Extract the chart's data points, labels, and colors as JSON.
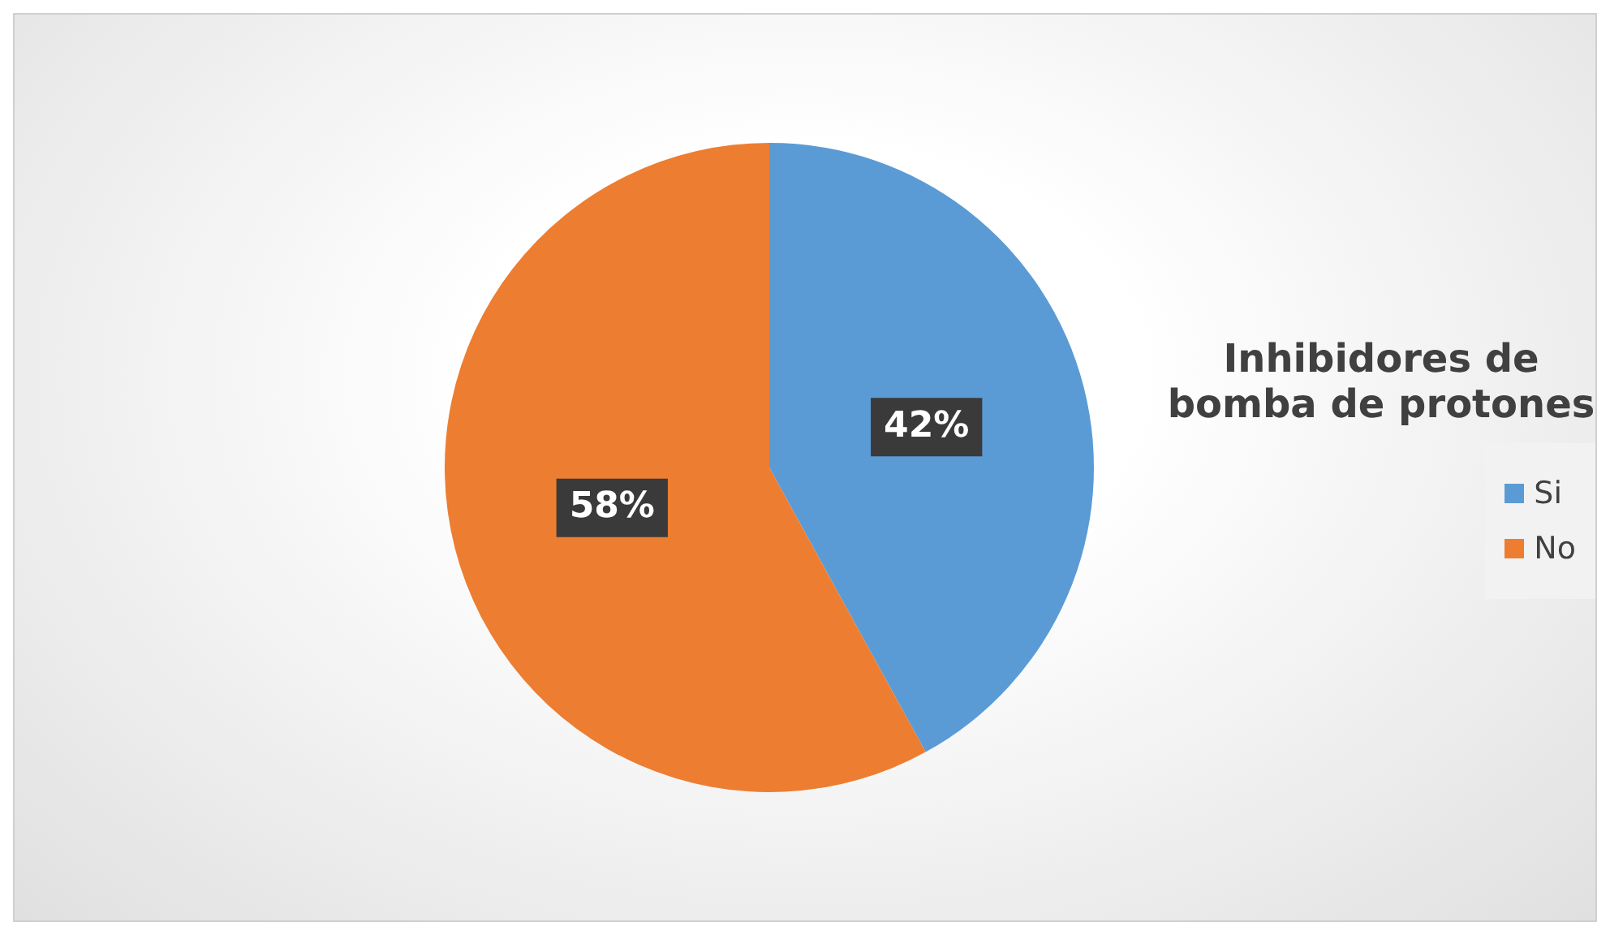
{
  "chart_data": {
    "type": "pie",
    "title": "Inhibidores de bomba de protones",
    "categories": [
      "Si",
      "No"
    ],
    "values": [
      42,
      58
    ],
    "colors": [
      "#5b9bd5",
      "#ed7d31"
    ],
    "value_labels": [
      "42%",
      "58%"
    ],
    "legend": "right"
  }
}
